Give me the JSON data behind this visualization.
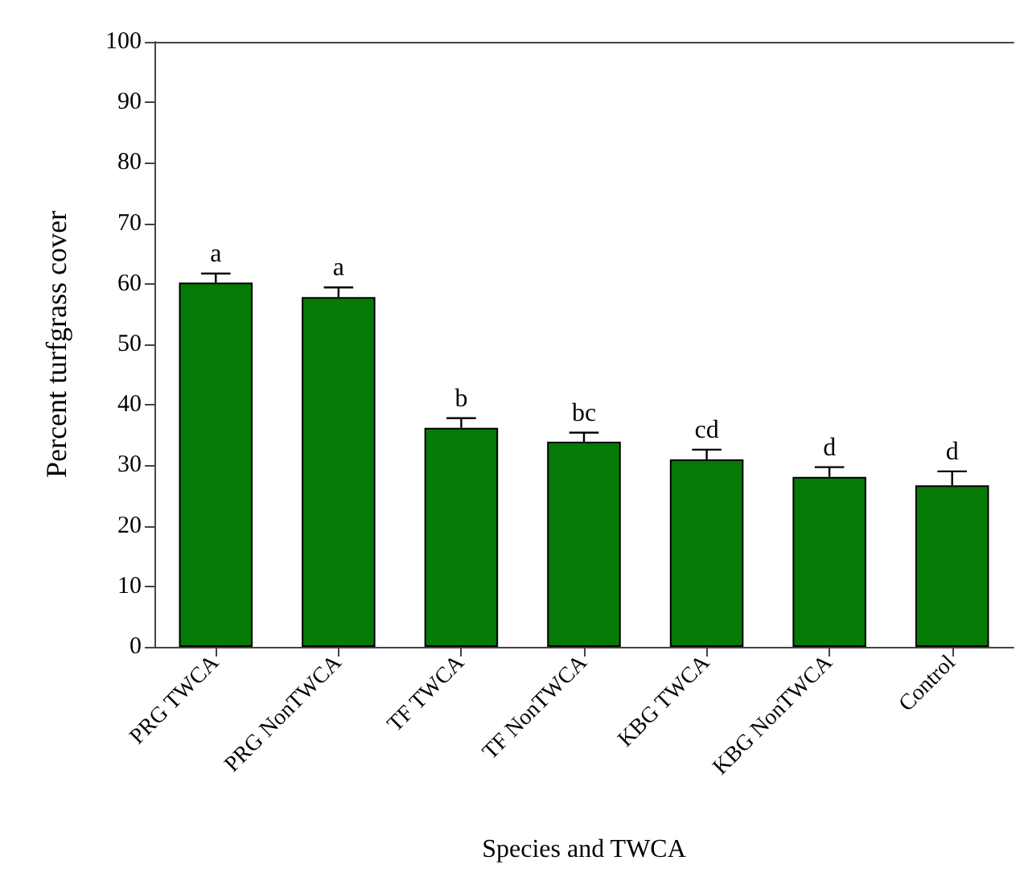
{
  "chart_data": {
    "type": "bar",
    "xlabel": "Species and TWCA",
    "ylabel": "Percent turfgrass cover",
    "categories": [
      "PRG TWCA",
      "PRG NonTWCA",
      "TF TWCA",
      "TF NonTWCA",
      "KBG TWCA",
      "KBG NonTWCA",
      "Control"
    ],
    "values": [
      60.2,
      57.8,
      36.2,
      33.9,
      31.0,
      28.1,
      26.7
    ],
    "errors": [
      [
        60.2,
        61.7
      ],
      [
        57.8,
        59.4
      ],
      [
        36.2,
        37.8
      ],
      [
        33.9,
        35.4
      ],
      [
        31.0,
        32.6
      ],
      [
        28.1,
        29.7
      ],
      [
        26.7,
        29.0
      ]
    ],
    "color": "#067a06",
    "ylim": [
      0,
      100
    ],
    "yticks": [
      0,
      10,
      20,
      30,
      40,
      50,
      60,
      70,
      80,
      90,
      100
    ],
    "grid": false,
    "annotations": [
      {
        "text": "a",
        "x": "PRG TWCA",
        "y": 61.7
      },
      {
        "text": "a",
        "x": "PRG NonTWCA",
        "y": 59.4
      },
      {
        "text": "b",
        "x": "TF TWCA",
        "y": 37.8
      },
      {
        "text": "bc",
        "x": "TF NonTWCA",
        "y": 35.4
      },
      {
        "text": "cd",
        "x": "KBG TWCA",
        "y": 32.6
      },
      {
        "text": "d",
        "x": "KBG NonTWCA",
        "y": 29.7
      },
      {
        "text": "d",
        "x": "Control",
        "y": 29.0
      }
    ]
  }
}
